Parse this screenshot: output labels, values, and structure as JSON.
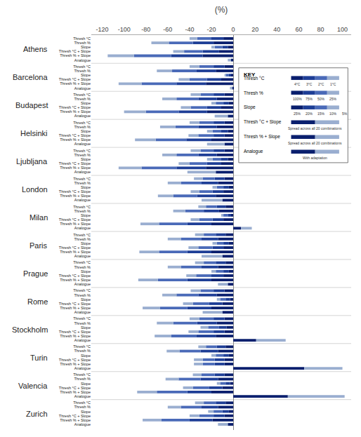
{
  "chart_data": {
    "type": "bar",
    "title": "(%)",
    "orientation": "horizontal",
    "stacked": true,
    "grid": false,
    "groups": [
      "Athens",
      "Barcelona",
      "Budapest",
      "Helsinki",
      "Ljubljana",
      "London",
      "Milan",
      "Paris",
      "Prague",
      "Rome",
      "Stockholm",
      "Turin",
      "Valencia",
      "Zurich"
    ],
    "categories": [
      "Thresh °C",
      "Thresh %",
      "Slope",
      "Thresh °C + Slope",
      "Thresh % + Slope",
      "Analogue",
      "Thresh °C",
      "Thresh %",
      "Slope",
      "Thresh °C + Slope",
      "Thresh % + Slope",
      "Analogue",
      "Thresh °C",
      "Thresh %",
      "Slope",
      "Thresh °C + Slope",
      "Thresh % + Slope",
      "Analogue",
      "Thresh °C",
      "Thresh %",
      "Slope",
      "Thresh °C + Slope",
      "Thresh % + Slope",
      "Analogue",
      "Thresh °C",
      "Thresh %",
      "Slope",
      "Thresh °C + Slope",
      "Thresh % + Slope",
      "Analogue",
      "Thresh °C",
      "Thresh %",
      "Slope",
      "Thresh °C + Slope",
      "Thresh % + Slope",
      "Analogue",
      "Thresh °C",
      "Thresh %",
      "Slope",
      "Thresh °C + Slope",
      "Thresh % + Slope",
      "Analogue",
      "Thresh °C",
      "Thresh %",
      "Slope",
      "Thresh °C + Slope",
      "Thresh % + Slope",
      "Analogue",
      "Thresh °C",
      "Thresh %",
      "Slope",
      "Thresh °C + Slope",
      "Thresh % + Slope",
      "Analogue",
      "Thresh °C",
      "Thresh %",
      "Slope",
      "Thresh °C + Slope",
      "Thresh % + Slope",
      "Analogue",
      "Thresh °C",
      "Thresh %",
      "Slope",
      "Thresh °C + Slope",
      "Thresh % + Slope",
      "Analogue",
      "Thresh °C",
      "Thresh %",
      "Slope",
      "Thresh °C + Slope",
      "Thresh % + Slope",
      "Analogue",
      "Thresh °C",
      "Thresh %",
      "Slope",
      "Thresh °C + Slope",
      "Thresh % + Slope",
      "Analogue",
      "Thresh °C",
      "Thresh %",
      "Slope",
      "Thresh °C + Slope",
      "Thresh % + Slope",
      "Analogue"
    ],
    "series": [
      {
        "color": "#0a1f6e",
        "values": [
          -9,
          -18,
          -5,
          -13,
          -28,
          -2,
          -8,
          -16,
          -2,
          -11,
          -25,
          -1,
          -8,
          -15,
          -4,
          -11,
          -24,
          -5,
          -8,
          -15,
          -5,
          -8,
          -20,
          -8,
          -8,
          -15,
          -5,
          -11,
          -25,
          -16,
          -8,
          -14,
          -4,
          -9,
          -16,
          -10,
          -7,
          -13,
          -2,
          -9,
          -20,
          7,
          -7,
          -14,
          -4,
          -9,
          -20,
          -10,
          -7,
          -14,
          -4,
          -9,
          -20,
          -5,
          -8,
          -15,
          -3,
          -10,
          -20,
          -10,
          -8,
          -15,
          -6,
          -8,
          -16,
          21,
          -7,
          -14,
          -4,
          -8,
          -8,
          65,
          -8,
          -14,
          -3,
          -10,
          -20,
          50,
          -7,
          -14,
          -4,
          -8,
          -19,
          -5
        ]
      },
      {
        "colors": [
          "#1e3e96",
          "#1e3e96",
          "#1e3e96",
          "#1e3e96",
          "#1e3e96",
          "#9aaed0",
          "#1e3e96",
          "#1e3e96",
          "#1e3e96",
          "#1e3e96",
          "#1e3e96",
          "#9aaed0",
          "#1e3e96",
          "#1e3e96",
          "#1e3e96",
          "#1e3e96",
          "#1e3e96",
          "#9aaed0",
          "#1e3e96",
          "#1e3e96",
          "#1e3e96",
          "#1e3e96",
          "#1e3e96",
          "#9aaed0",
          "#1e3e96",
          "#1e3e96",
          "#1e3e96",
          "#1e3e96",
          "#1e3e96",
          "#9aaed0",
          "#1e3e96",
          "#1e3e96",
          "#1e3e96",
          "#1e3e96",
          "#1e3e96",
          "#9aaed0",
          "#1e3e96",
          "#1e3e96",
          "#1e3e96",
          "#1e3e96",
          "#1e3e96",
          "#9aaed0",
          "#1e3e96",
          "#1e3e96",
          "#1e3e96",
          "#1e3e96",
          "#1e3e96",
          "#9aaed0",
          "#1e3e96",
          "#1e3e96",
          "#1e3e96",
          "#1e3e96",
          "#1e3e96",
          "#9aaed0",
          "#1e3e96",
          "#1e3e96",
          "#1e3e96",
          "#1e3e96",
          "#1e3e96",
          "#9aaed0",
          "#1e3e96",
          "#1e3e96",
          "#1e3e96",
          "#1e3e96",
          "#1e3e96",
          "#9aaed0",
          "#1e3e96",
          "#1e3e96",
          "#1e3e96",
          "#1e3e96",
          "#1e3e96",
          "#9aaed0",
          "#1e3e96",
          "#1e3e96",
          "#1e3e96",
          "#1e3e96",
          "#1e3e96",
          "#9aaed0",
          "#1e3e96",
          "#1e3e96",
          "#1e3e96",
          "#1e3e96",
          "#1e3e96",
          "#9aaed0"
        ],
        "values": [
          -11,
          -19,
          -5,
          -15,
          -29,
          -3,
          -10,
          -18,
          -2,
          -13,
          -27,
          -2,
          -10,
          -17,
          -5,
          -13,
          -26,
          -12,
          -10,
          -17,
          -6,
          -10,
          -23,
          -16,
          -10,
          -17,
          -6,
          -13,
          -27,
          -26,
          -9,
          -15,
          -5,
          -10,
          -17,
          -19,
          -8,
          -14,
          -3,
          -10,
          -22,
          10,
          -9,
          -15,
          -5,
          -10,
          -22,
          -19,
          -9,
          -15,
          -5,
          -11,
          -22,
          -9,
          -10,
          -17,
          -4,
          -12,
          -22,
          -18,
          -10,
          -18,
          -7,
          -10,
          -18,
          27,
          -8,
          -16,
          -5,
          -9,
          -9,
          35,
          -9,
          -16,
          -4,
          -12,
          -22,
          52,
          -9,
          -15,
          -6,
          -10,
          -21,
          -9
        ]
      },
      {
        "color": "#4a6ab8",
        "values": [
          -13,
          -22,
          -7,
          -17,
          -34,
          null,
          -13,
          -22,
          -3,
          -16,
          -32,
          null,
          -12,
          -20,
          -7,
          -15,
          -30,
          null,
          -13,
          -21,
          -8,
          -14,
          -28,
          null,
          -12,
          -20,
          -8,
          -16,
          -32,
          null,
          -11,
          -19,
          -6,
          -12,
          -22,
          null,
          -10,
          -17,
          -4,
          -12,
          -26,
          null,
          -11,
          -19,
          -6,
          -13,
          -26,
          null,
          -11,
          -19,
          -7,
          -14,
          -27,
          null,
          -12,
          -20,
          -5,
          -15,
          -25,
          null,
          -13,
          -22,
          -10,
          -14,
          -23,
          null,
          -10,
          -19,
          -7,
          -11,
          -11,
          null,
          -12,
          -20,
          -5,
          -15,
          -28,
          null,
          -11,
          -19,
          -8,
          -13,
          -26,
          null
        ]
      },
      {
        "color": "#9aaed0",
        "values": [
          -7,
          -16,
          -3,
          -10,
          -24,
          null,
          -9,
          -14,
          -1,
          -10,
          -21,
          null,
          -9,
          -13,
          -4,
          -9,
          -20,
          null,
          -9,
          -14,
          -5,
          -9,
          -19,
          null,
          -9,
          -13,
          -5,
          -10,
          -21,
          null,
          -8,
          -12,
          -4,
          -8,
          -14,
          null,
          -7,
          -11,
          -2,
          -8,
          -17,
          null,
          -8,
          -12,
          -4,
          -9,
          -18,
          null,
          -8,
          -12,
          -4,
          -9,
          -18,
          null,
          -9,
          -13,
          -3,
          -9,
          -16,
          null,
          -9,
          -15,
          -7,
          -9,
          -15,
          null,
          -7,
          -12,
          -4,
          -8,
          -8,
          null,
          -8,
          -12,
          -3,
          -9,
          -18,
          null,
          -8,
          -12,
          -5,
          -9,
          -17,
          null
        ]
      }
    ],
    "xlim": [
      -130,
      108
    ],
    "xticks": [
      -120,
      -100,
      -80,
      -60,
      -40,
      -20,
      0,
      20,
      40,
      60,
      80,
      100
    ],
    "key": {
      "title": "KEY",
      "items": [
        {
          "label": "Thresh °C",
          "colors": [
            "#0a1f6e",
            "#1e3e96",
            "#4a6ab8",
            "#9aaed0"
          ],
          "sublabels": [
            "4°C",
            "3°C",
            "2°C",
            "1°C"
          ]
        },
        {
          "label": "Thresh %",
          "colors": [
            "#0a1f6e",
            "#1e3e96",
            "#4a6ab8",
            "#9aaed0"
          ],
          "sublabels": [
            "100%",
            "75%",
            "50%",
            "25%"
          ]
        },
        {
          "label": "Slope",
          "colors": [
            "#0a1f6e",
            "#1e3e96",
            "#4a6ab8",
            "#9aaed0"
          ],
          "sublabels": [
            "25%",
            "20%",
            "15%",
            "10%",
            "5%"
          ]
        },
        {
          "label": "Thresh °C + Slope",
          "colors": [
            "#0a1f6e",
            "#9aaed0"
          ],
          "sublabels": [
            "Spread across all 20 combinations"
          ]
        },
        {
          "label": "Thresh % + Slope",
          "colors": [
            "#0a1f6e",
            "#9aaed0"
          ],
          "sublabels": [
            "Spread across all 20 combinations"
          ]
        },
        {
          "label": "Analogue",
          "colors": [
            "#0a1f6e",
            "#9aaed0"
          ],
          "sublabels": [
            "With adaptation"
          ]
        }
      ]
    }
  }
}
